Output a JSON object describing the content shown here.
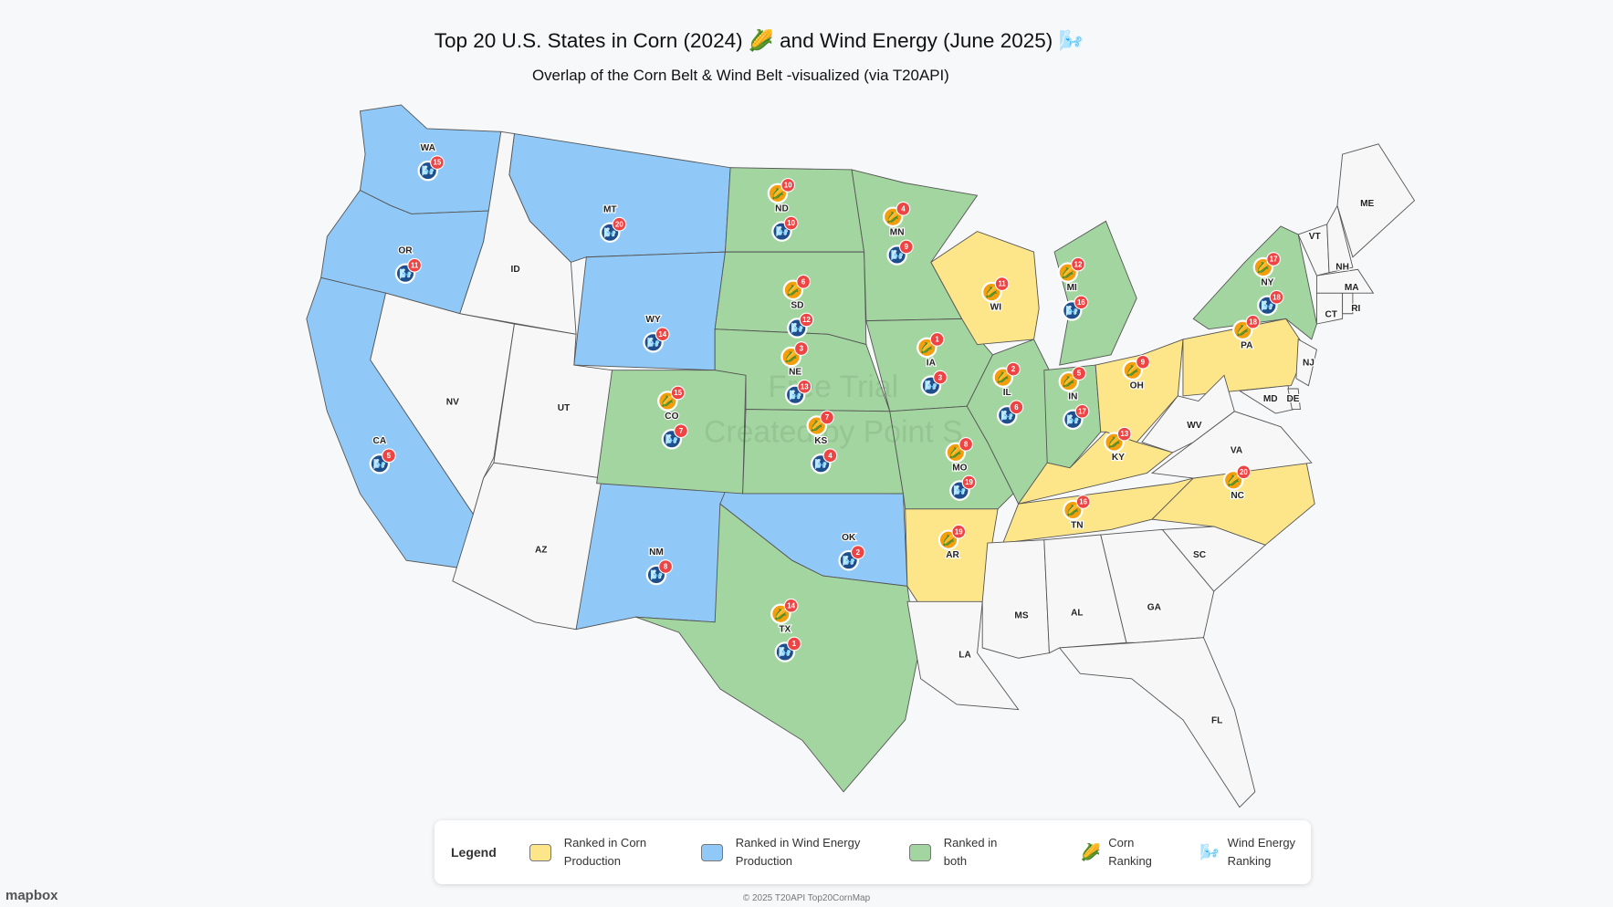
{
  "title": "Top 20 U.S. States in Corn (2024) 🌽 and Wind Energy (June 2025) 🌬️",
  "subtitle": "Overlap of the Corn Belt & Wind Belt -visualized (via T20API)",
  "watermark": [
    "Free Trial",
    "Created by Point S"
  ],
  "colors": {
    "corn": "#fde68a",
    "wind": "#90c9f7",
    "both": "#a3d5a0",
    "none": "#f7f7f8",
    "corn_icon": "#f59e0b",
    "wind_icon": "#1e4e8c",
    "badge": "#ef4444"
  },
  "states": [
    {
      "label": "WA",
      "corn_rank": null,
      "wind_rank": 15
    },
    {
      "label": "OR",
      "corn_rank": null,
      "wind_rank": 11
    },
    {
      "label": "CA",
      "corn_rank": null,
      "wind_rank": 5
    },
    {
      "label": "MT",
      "corn_rank": null,
      "wind_rank": 20
    },
    {
      "label": "WY",
      "corn_rank": null,
      "wind_rank": 14
    },
    {
      "label": "NM",
      "corn_rank": null,
      "wind_rank": 8
    },
    {
      "label": "OK",
      "corn_rank": null,
      "wind_rank": 2
    },
    {
      "label": "ID",
      "corn_rank": null,
      "wind_rank": null
    },
    {
      "label": "NV",
      "corn_rank": null,
      "wind_rank": null
    },
    {
      "label": "UT",
      "corn_rank": null,
      "wind_rank": null
    },
    {
      "label": "AZ",
      "corn_rank": null,
      "wind_rank": null
    },
    {
      "label": "ND",
      "corn_rank": 10,
      "wind_rank": 10
    },
    {
      "label": "SD",
      "corn_rank": 6,
      "wind_rank": 12
    },
    {
      "label": "NE",
      "corn_rank": 3,
      "wind_rank": 13
    },
    {
      "label": "CO",
      "corn_rank": 15,
      "wind_rank": 7
    },
    {
      "label": "KS",
      "corn_rank": 7,
      "wind_rank": 4
    },
    {
      "label": "TX",
      "corn_rank": 14,
      "wind_rank": 1
    },
    {
      "label": "MN",
      "corn_rank": 4,
      "wind_rank": 9
    },
    {
      "label": "IA",
      "corn_rank": 1,
      "wind_rank": 3
    },
    {
      "label": "MO",
      "corn_rank": 8,
      "wind_rank": 19
    },
    {
      "label": "IL",
      "corn_rank": 2,
      "wind_rank": 6
    },
    {
      "label": "IN",
      "corn_rank": 5,
      "wind_rank": 17
    },
    {
      "label": "MI",
      "corn_rank": 12,
      "wind_rank": 16
    },
    {
      "label": "NY",
      "corn_rank": 17,
      "wind_rank": 18
    },
    {
      "label": "WI",
      "corn_rank": 11,
      "wind_rank": null
    },
    {
      "label": "OH",
      "corn_rank": 9,
      "wind_rank": null
    },
    {
      "label": "KY",
      "corn_rank": 13,
      "wind_rank": null
    },
    {
      "label": "TN",
      "corn_rank": 16,
      "wind_rank": null
    },
    {
      "label": "NC",
      "corn_rank": 20,
      "wind_rank": null
    },
    {
      "label": "PA",
      "corn_rank": 18,
      "wind_rank": null
    },
    {
      "label": "AR",
      "corn_rank": 19,
      "wind_rank": null
    },
    {
      "label": "LA",
      "corn_rank": null,
      "wind_rank": null
    },
    {
      "label": "MS",
      "corn_rank": null,
      "wind_rank": null
    },
    {
      "label": "AL",
      "corn_rank": null,
      "wind_rank": null
    },
    {
      "label": "GA",
      "corn_rank": null,
      "wind_rank": null
    },
    {
      "label": "SC",
      "corn_rank": null,
      "wind_rank": null
    },
    {
      "label": "FL",
      "corn_rank": null,
      "wind_rank": null
    },
    {
      "label": "VA",
      "corn_rank": null,
      "wind_rank": null
    },
    {
      "label": "WV",
      "corn_rank": null,
      "wind_rank": null
    },
    {
      "label": "MD",
      "corn_rank": null,
      "wind_rank": null
    },
    {
      "label": "DE",
      "corn_rank": null,
      "wind_rank": null
    },
    {
      "label": "NJ",
      "corn_rank": null,
      "wind_rank": null
    },
    {
      "label": "CT",
      "corn_rank": null,
      "wind_rank": null
    },
    {
      "label": "RI",
      "corn_rank": null,
      "wind_rank": null
    },
    {
      "label": "MA",
      "corn_rank": null,
      "wind_rank": null
    },
    {
      "label": "VT",
      "corn_rank": null,
      "wind_rank": null
    },
    {
      "label": "NH",
      "corn_rank": null,
      "wind_rank": null
    },
    {
      "label": "ME",
      "corn_rank": null,
      "wind_rank": null
    }
  ],
  "legend": {
    "title": "Legend",
    "corn": "Ranked in Corn Production",
    "wind": "Ranked in Wind Energy Production",
    "both": "Ranked in both",
    "corn_icon": "🌽",
    "corn_icon_label": "Corn Ranking",
    "wind_icon": "🌬️",
    "wind_icon_label": "Wind Energy Ranking"
  },
  "footer": "© 2025 T20API Top20CornMap",
  "attribution": "mapbox"
}
